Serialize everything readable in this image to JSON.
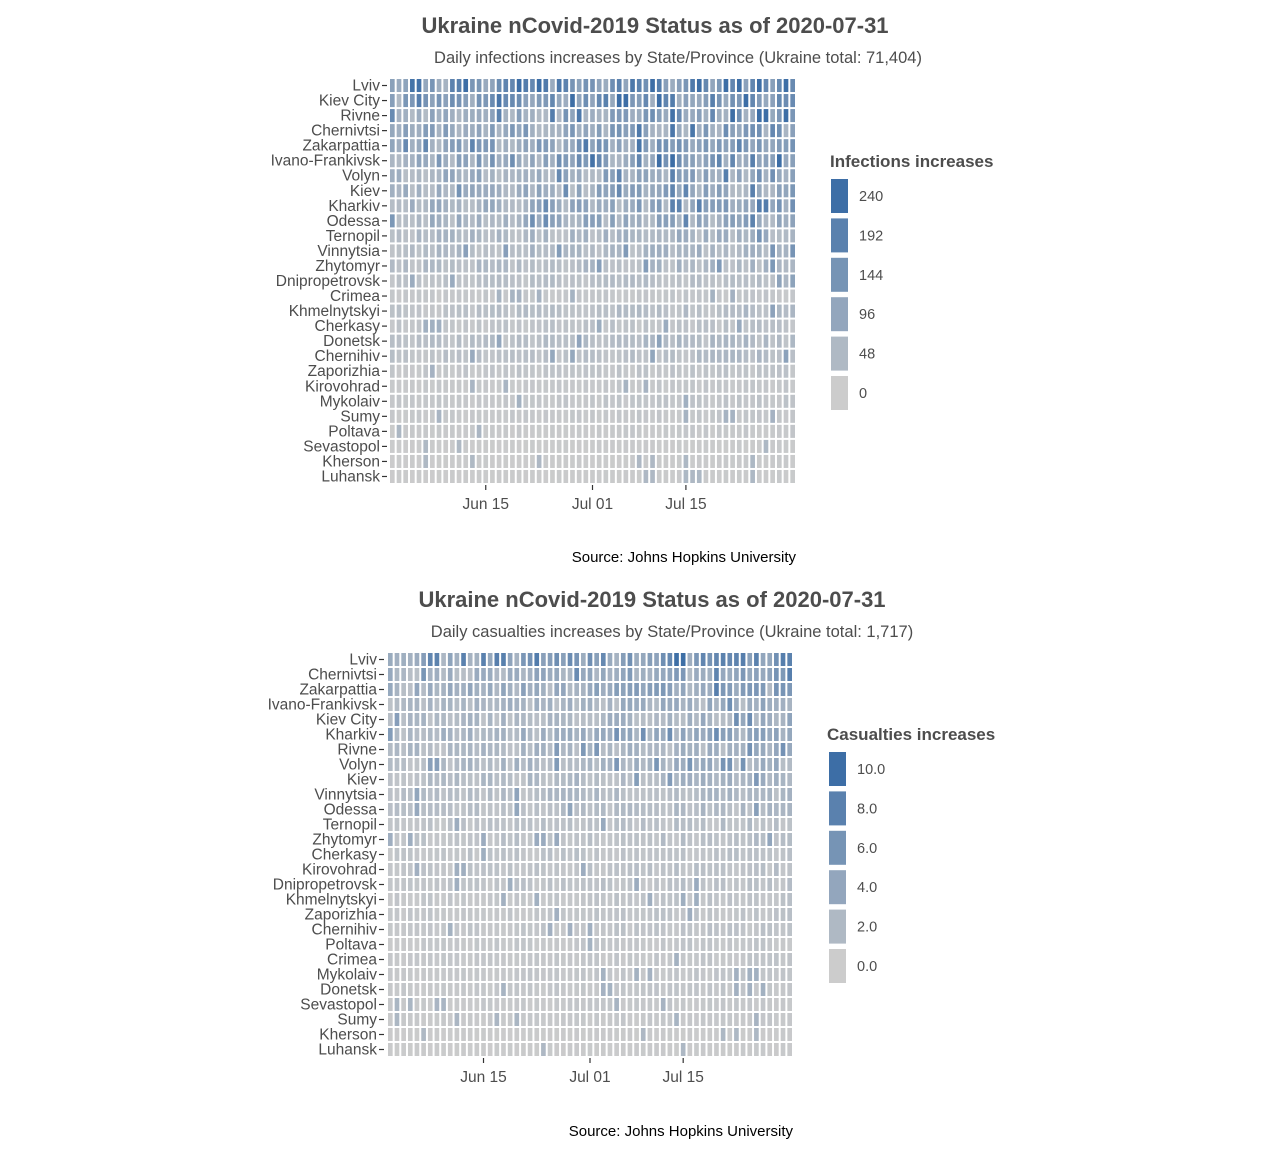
{
  "chart_data": [
    {
      "type": "heatmap",
      "title": "Ukraine nCovid-2019 Status as of 2020-07-31",
      "subtitle": "Daily infections increases by State/Province (Ukraine total: 71,404)",
      "caption": "Source: Johns Hopkins University",
      "legend_title": "Infections increases",
      "legend_position": "right",
      "legend_values": [
        "240",
        "192",
        "144",
        "96",
        "48",
        "0"
      ],
      "color_low": "#cccccc",
      "color_high": "#3d6ea6",
      "value_max": 260,
      "x_range": [
        "2020-06-01",
        "2020-07-31"
      ],
      "x_ticks": [
        {
          "date": "2020-06-15",
          "label": "Jun 15"
        },
        {
          "date": "2020-07-01",
          "label": "Jul 01"
        },
        {
          "date": "2020-07-15",
          "label": "Jul 15"
        }
      ],
      "rows": [
        {
          "name": "Lviv",
          "level": 0.66
        },
        {
          "name": "Kiev City",
          "level": 0.56
        },
        {
          "name": "Rivne",
          "level": 0.46
        },
        {
          "name": "Chernivtsi",
          "level": 0.44
        },
        {
          "name": "Zakarpattia",
          "level": 0.46
        },
        {
          "name": "Ivano-Frankivsk",
          "level": 0.5
        },
        {
          "name": "Volyn",
          "level": 0.36
        },
        {
          "name": "Kiev",
          "level": 0.34
        },
        {
          "name": "Kharkiv",
          "level": 0.36
        },
        {
          "name": "Odessa",
          "level": 0.34
        },
        {
          "name": "Ternopil",
          "level": 0.24
        },
        {
          "name": "Vinnytsia",
          "level": 0.22
        },
        {
          "name": "Zhytomyr",
          "level": 0.2
        },
        {
          "name": "Dnipropetrovsk",
          "level": 0.14
        },
        {
          "name": "Crimea",
          "level": 0.06
        },
        {
          "name": "Khmelnytskyi",
          "level": 0.14
        },
        {
          "name": "Cherkasy",
          "level": 0.1
        },
        {
          "name": "Donetsk",
          "level": 0.16
        },
        {
          "name": "Chernihiv",
          "level": 0.14
        },
        {
          "name": "Zaporizhia",
          "level": 0.08
        },
        {
          "name": "Kirovohrad",
          "level": 0.05
        },
        {
          "name": "Mykolaiv",
          "level": 0.07
        },
        {
          "name": "Sumy",
          "level": 0.05
        },
        {
          "name": "Poltava",
          "level": 0.04
        },
        {
          "name": "Sevastopol",
          "level": 0.02
        },
        {
          "name": "Kherson",
          "level": 0.02
        },
        {
          "name": "Luhansk",
          "level": 0.02
        }
      ]
    },
    {
      "type": "heatmap",
      "title": "Ukraine nCovid-2019 Status as of 2020-07-31",
      "subtitle": "Daily casualties increases by State/Province (Ukraine total: 1,717)",
      "caption": "Source: Johns Hopkins University",
      "legend_title": "Casualties increases",
      "legend_position": "right",
      "legend_values": [
        "10.0",
        "8.0",
        "6.0",
        "4.0",
        "2.0",
        "0.0"
      ],
      "color_low": "#cccccc",
      "color_high": "#3d6ea6",
      "value_max": 11,
      "x_range": [
        "2020-06-01",
        "2020-07-31"
      ],
      "x_ticks": [
        {
          "date": "2020-06-15",
          "label": "Jun 15"
        },
        {
          "date": "2020-07-01",
          "label": "Jul 01"
        },
        {
          "date": "2020-07-15",
          "label": "Jul 15"
        }
      ],
      "rows": [
        {
          "name": "Lviv",
          "level": 0.48
        },
        {
          "name": "Chernivtsi",
          "level": 0.34
        },
        {
          "name": "Zakarpattia",
          "level": 0.36
        },
        {
          "name": "Ivano-Frankivsk",
          "level": 0.26
        },
        {
          "name": "Kiev City",
          "level": 0.26
        },
        {
          "name": "Kharkiv",
          "level": 0.28
        },
        {
          "name": "Rivne",
          "level": 0.24
        },
        {
          "name": "Volyn",
          "level": 0.24
        },
        {
          "name": "Kiev",
          "level": 0.2
        },
        {
          "name": "Vinnytsia",
          "level": 0.18
        },
        {
          "name": "Odessa",
          "level": 0.16
        },
        {
          "name": "Ternopil",
          "level": 0.12
        },
        {
          "name": "Zhytomyr",
          "level": 0.12
        },
        {
          "name": "Cherkasy",
          "level": 0.1
        },
        {
          "name": "Kirovohrad",
          "level": 0.1
        },
        {
          "name": "Dnipropetrovsk",
          "level": 0.1
        },
        {
          "name": "Khmelnytskyi",
          "level": 0.08
        },
        {
          "name": "Zaporizhia",
          "level": 0.08
        },
        {
          "name": "Chernihiv",
          "level": 0.08
        },
        {
          "name": "Poltava",
          "level": 0.06
        },
        {
          "name": "Crimea",
          "level": 0.06
        },
        {
          "name": "Mykolaiv",
          "level": 0.06
        },
        {
          "name": "Donetsk",
          "level": 0.06
        },
        {
          "name": "Sevastopol",
          "level": 0.05
        },
        {
          "name": "Sumy",
          "level": 0.04
        },
        {
          "name": "Kherson",
          "level": 0.02
        },
        {
          "name": "Luhansk",
          "level": 0.02
        }
      ]
    }
  ]
}
